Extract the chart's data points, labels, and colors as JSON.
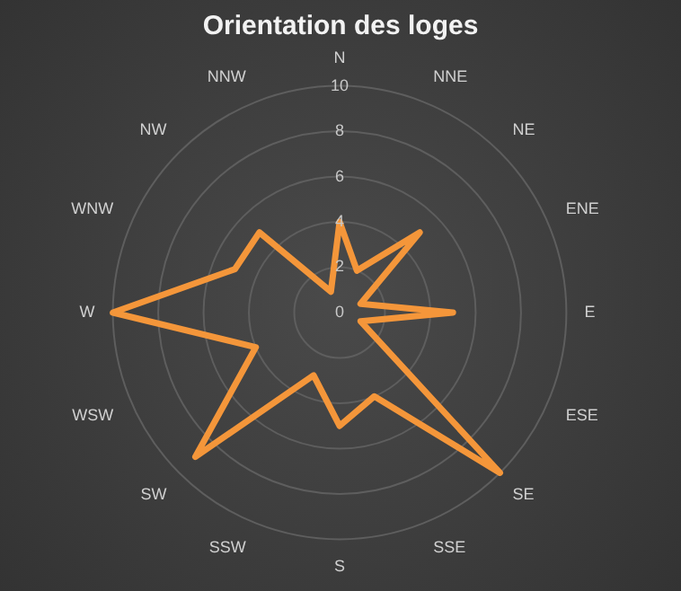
{
  "chart_data": {
    "type": "radar",
    "title": "Orientation des loges",
    "categories": [
      "N",
      "NNE",
      "NE",
      "ENE",
      "E",
      "ESE",
      "SE",
      "SSE",
      "S",
      "SSW",
      "SW",
      "WSW",
      "W",
      "WNW",
      "NW",
      "NNW"
    ],
    "series": [
      {
        "color": "#f4963a",
        "values": [
          4,
          2,
          5,
          1,
          5,
          1,
          10,
          4,
          5,
          3,
          9,
          4,
          10,
          5,
          5,
          1
        ]
      }
    ],
    "ylim": [
      0,
      10
    ],
    "yticks": [
      0,
      2,
      4,
      6,
      8,
      10
    ],
    "grid": true,
    "legend": false,
    "marker": "none"
  }
}
